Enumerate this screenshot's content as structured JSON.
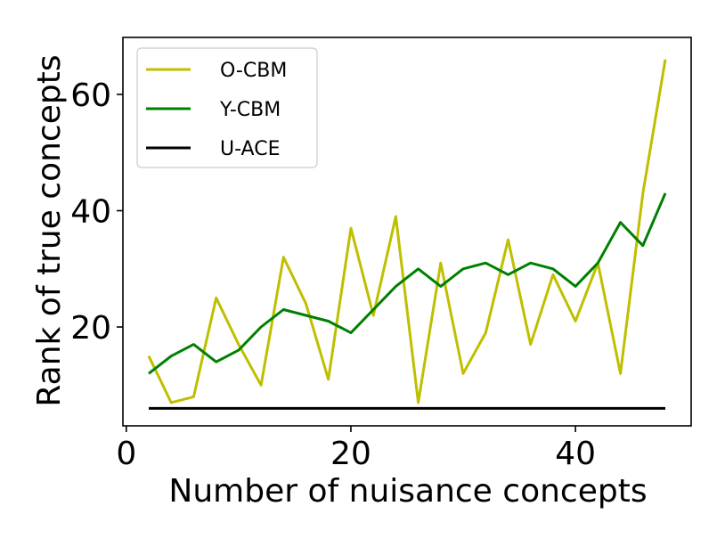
{
  "chart_data": {
    "type": "line",
    "xlabel": "Number of nuisance concepts",
    "ylabel": "Rank of true concepts",
    "xlim": [
      -0.3,
      50.3
    ],
    "ylim": [
      3,
      69.8
    ],
    "xticks": [
      0,
      20,
      40
    ],
    "yticks": [
      20,
      40,
      60
    ],
    "grid": false,
    "legend_position": "top-left",
    "series": [
      {
        "name": "O-CBM",
        "color": "#bfbf00",
        "x": [
          2,
          4,
          6,
          8,
          10,
          12,
          14,
          16,
          18,
          20,
          22,
          24,
          26,
          28,
          30,
          32,
          34,
          36,
          38,
          40,
          42,
          44,
          46,
          48
        ],
        "values": [
          15,
          7,
          8,
          25,
          17,
          10,
          32,
          24,
          11,
          37,
          22,
          39,
          7,
          31,
          12,
          19,
          35,
          17,
          29,
          21,
          31,
          12,
          43,
          66
        ]
      },
      {
        "name": "Y-CBM",
        "color": "#008000",
        "x": [
          2,
          4,
          6,
          8,
          10,
          12,
          14,
          16,
          18,
          20,
          22,
          24,
          26,
          28,
          30,
          32,
          34,
          36,
          38,
          40,
          42,
          44,
          46,
          48
        ],
        "values": [
          12,
          15,
          17,
          14,
          16,
          20,
          23,
          22,
          21,
          19,
          23,
          27,
          30,
          27,
          30,
          31,
          29,
          31,
          30,
          27,
          31,
          38,
          34,
          43
        ]
      },
      {
        "name": "U-ACE",
        "color": "#000000",
        "x": [
          2,
          48
        ],
        "values": [
          6,
          6
        ]
      }
    ]
  }
}
